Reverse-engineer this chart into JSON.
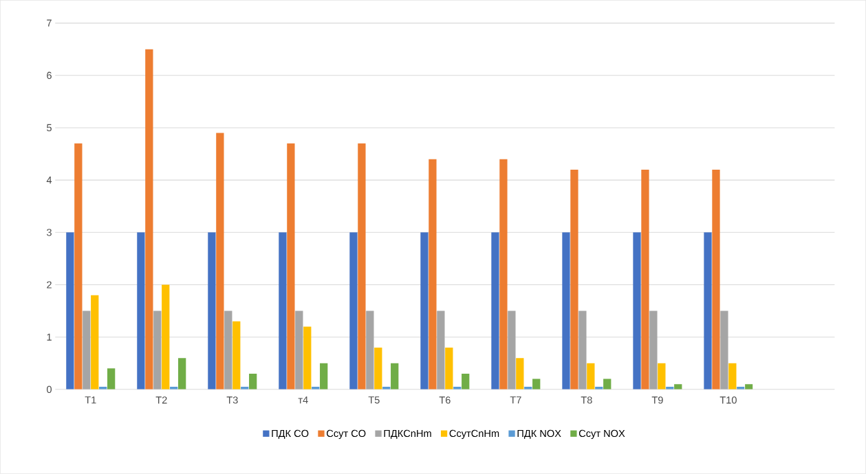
{
  "chart_data": {
    "type": "bar",
    "categories": [
      "Т1",
      "Т2",
      "Т3",
      "т4",
      "Т5",
      "Т6",
      "Т7",
      "Т8",
      "Т9",
      "Т10",
      null
    ],
    "series": [
      {
        "name": "ПДК CO",
        "color": "#4472c4",
        "values": [
          3,
          3,
          3,
          3,
          3,
          3,
          3,
          3,
          3,
          3,
          null
        ]
      },
      {
        "name": "Ссут CO",
        "color": "#ed7d31",
        "values": [
          4.7,
          6.5,
          4.9,
          4.7,
          4.7,
          4.4,
          4.4,
          4.2,
          4.2,
          4.2,
          null
        ]
      },
      {
        "name": "ПДКCnHm",
        "color": "#a5a5a5",
        "values": [
          1.5,
          1.5,
          1.5,
          1.5,
          1.5,
          1.5,
          1.5,
          1.5,
          1.5,
          1.5,
          null
        ]
      },
      {
        "name": "СсутCnHm",
        "color": "#ffc000",
        "values": [
          1.8,
          2.0,
          1.3,
          1.2,
          0.8,
          0.8,
          0.6,
          0.5,
          0.5,
          0.5,
          null
        ]
      },
      {
        "name": "ПДК NOX",
        "color": "#5b9bd5",
        "values": [
          0.05,
          0.05,
          0.05,
          0.05,
          0.05,
          0.05,
          0.05,
          0.05,
          0.05,
          0.05,
          null
        ]
      },
      {
        "name": "Ссут NOX",
        "color": "#70ad47",
        "values": [
          0.4,
          0.6,
          0.3,
          0.5,
          0.5,
          0.3,
          0.2,
          0.2,
          0.1,
          0.1,
          null
        ]
      }
    ],
    "ylim": [
      0,
      7
    ],
    "yticks": [
      0,
      1,
      2,
      3,
      4,
      5,
      6,
      7
    ],
    "grid": "y",
    "legend": "bottom"
  }
}
